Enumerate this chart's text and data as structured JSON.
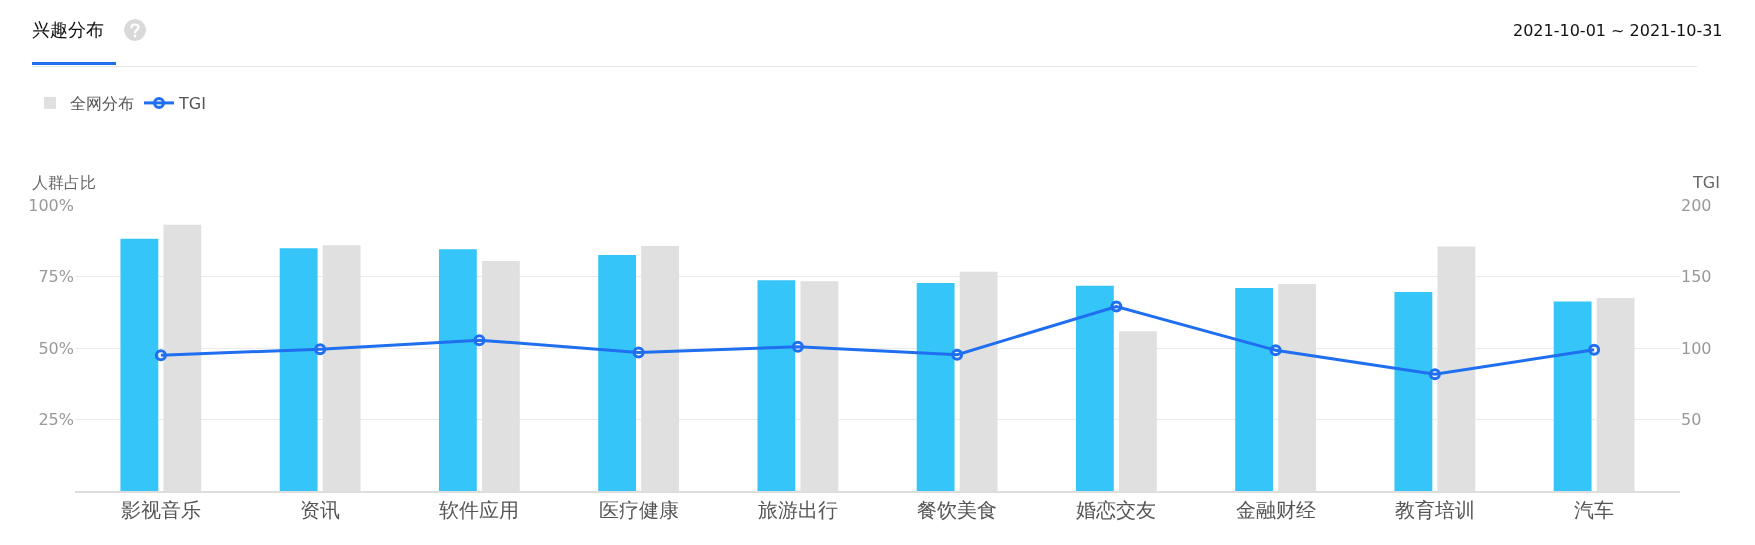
{
  "chart_data": {
    "type": "bar",
    "title": "兴趣分布",
    "subtitle": "2021-10-01 ~ 2021-10-31",
    "ylabel": "人群占比",
    "y2label": "TGI",
    "categories": [
      "影视音乐",
      "资讯",
      "软件应用",
      "医疗健康",
      "旅游出行",
      "餐饮美食",
      "婚恋交友",
      "金融财经",
      "教育培训",
      "汽车"
    ],
    "series": [
      {
        "color": "#35c5f8",
        "values": [
          88.2,
          84.9,
          84.5,
          82.5,
          73.7,
          72.7,
          71.8,
          71.0,
          69.6,
          66.3
        ]
      },
      {
        "name": "全网分布",
        "color": "#e0e0e0",
        "values": [
          93.1,
          85.9,
          80.4,
          85.7,
          73.3,
          76.7,
          55.9,
          72.4,
          85.5,
          67.5
        ]
      },
      {
        "name": "TGI",
        "type": "line",
        "axis": "y2",
        "color": "#1f6ff0",
        "values": [
          94.9,
          99.2,
          105.5,
          96.9,
          100.8,
          95.3,
          129,
          98.4,
          81.6,
          98.8
        ]
      }
    ],
    "ylim": [
      0,
      100
    ],
    "yticks": [
      {
        "value": 25,
        "label": "25%"
      },
      {
        "value": 50,
        "label": "50%"
      },
      {
        "value": 75,
        "label": "75%"
      },
      {
        "value": 100,
        "label": "100%"
      }
    ],
    "y2lim": [
      0,
      200
    ],
    "y2ticks": [
      50,
      100,
      150,
      200
    ],
    "grid": "y",
    "legend": "top left",
    "marker": "circle",
    "line_style": "solid"
  }
}
